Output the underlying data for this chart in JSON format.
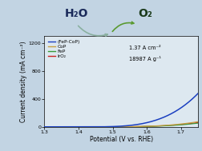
{
  "background_color": "#c2d4e3",
  "plot_bg": "#dde8f0",
  "xlim": [
    1.3,
    1.75
  ],
  "ylim": [
    0,
    1300
  ],
  "xlabel": "Potential (V vs. RHE)",
  "ylabel": "Current density (mA cm⁻²)",
  "xticks": [
    1.3,
    1.4,
    1.5,
    1.6,
    1.7
  ],
  "ytick_vals": [
    0,
    400,
    800,
    1200
  ],
  "ytick_labels": [
    "0",
    "400",
    "800",
    "1200"
  ],
  "legend": [
    "(FeP-CoP)",
    "CoP",
    "FeP",
    "IrO₂"
  ],
  "line_colors": [
    "#1a3fc0",
    "#c8a040",
    "#3a9a3a",
    "#cc2020"
  ],
  "annotation1": "1.37 A cm⁻²",
  "annotation2": "18987 A g⁻¹",
  "h2o_label": "H₂O",
  "o2_label": "O₂",
  "axis_fontsize": 5.5,
  "tick_fontsize": 4.5,
  "legend_fontsize": 4.2,
  "annot_fontsize": 4.8,
  "h2o_color": "#1a2a5a",
  "o2_color": "#1a3a1a",
  "arrow1_color": "#8ab0a0",
  "arrow2_color": "#5a9a30"
}
